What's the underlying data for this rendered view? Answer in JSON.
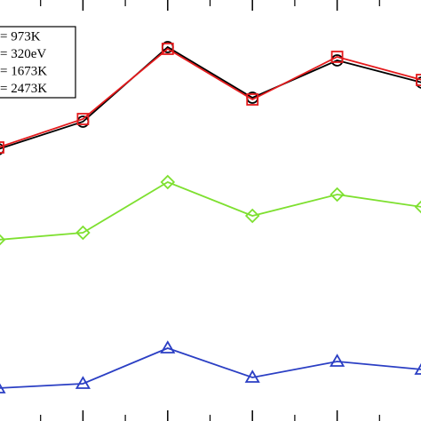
{
  "chart_data": {
    "type": "line",
    "x": [
      0,
      1,
      2,
      3,
      4,
      5
    ],
    "xlim": [
      0,
      5
    ],
    "xticks": [
      1,
      2,
      3,
      4
    ],
    "ylim": [
      0,
      474
    ],
    "series": [
      {
        "name": "= 973K",
        "color": "#000000",
        "marker": "circle",
        "values": [
          306,
          337,
          421,
          364,
          406,
          381
        ]
      },
      {
        "name": "= 320eV",
        "color": "#e41a1c",
        "marker": "square",
        "values": [
          308,
          340,
          419,
          362,
          410,
          384
        ]
      },
      {
        "name": "= 1673K",
        "color": "#7ee030",
        "marker": "diamond",
        "values": [
          204,
          212,
          269,
          231,
          255,
          241
        ]
      },
      {
        "name": "= 2473K",
        "color": "#2b3fc4",
        "marker": "triangle",
        "values": [
          37,
          42,
          82,
          49,
          67,
          58
        ]
      }
    ]
  }
}
